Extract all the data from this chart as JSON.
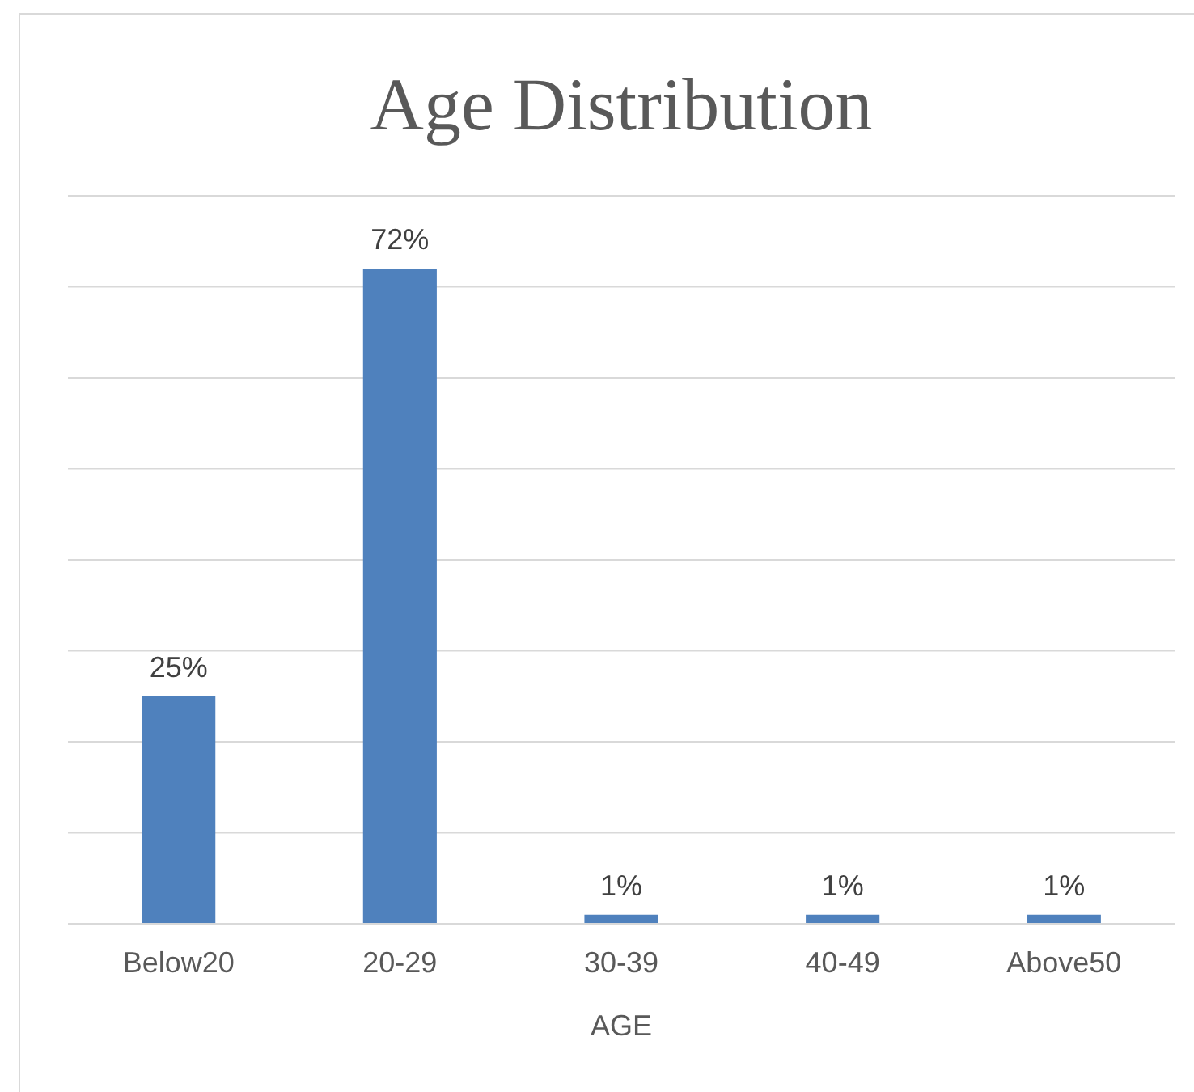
{
  "chart_data": {
    "type": "bar",
    "title": "Age Distribution",
    "xlabel": "AGE",
    "categories": [
      "Below20",
      "20-29",
      "30-39",
      "40-49",
      "Above50"
    ],
    "values": [
      25,
      72,
      1,
      1,
      1
    ],
    "value_labels": [
      "25%",
      "72%",
      "1%",
      "1%",
      "1%"
    ],
    "color": "#4f81bd",
    "ylim": [
      0,
      80
    ],
    "yticks": [
      {
        "value": 0,
        "label": null
      },
      {
        "value": 10,
        "label": null
      },
      {
        "value": 20,
        "label": null
      },
      {
        "value": 30,
        "label": null
      },
      {
        "value": 40,
        "label": null
      },
      {
        "value": 50,
        "label": null
      },
      {
        "value": 60,
        "label": null
      },
      {
        "value": 70,
        "label": null
      },
      {
        "value": 80,
        "label": null
      }
    ],
    "grid": "y",
    "tick_labels": "x"
  }
}
